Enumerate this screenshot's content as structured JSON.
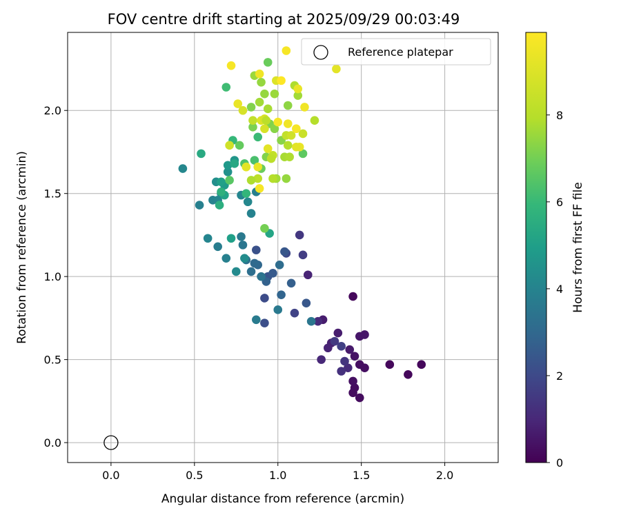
{
  "chart_data": {
    "type": "scatter",
    "title": "FOV centre drift starting at 2025/09/29 00:03:49",
    "xlabel": "Angular distance from reference (arcmin)",
    "ylabel": "Rotation from reference (arcmin)",
    "xlim": [
      -0.26,
      2.32
    ],
    "ylim": [
      -0.12,
      2.47
    ],
    "xticks": [
      "0.0",
      "0.5",
      "1.0",
      "1.5",
      "2.0"
    ],
    "yticks": [
      "0.0",
      "0.5",
      "1.0",
      "1.5",
      "2.0"
    ],
    "grid": true,
    "colorbar": {
      "label": "Hours from first FF file",
      "colormap": "viridis",
      "range": [
        0,
        9.9
      ],
      "ticks": [
        "0",
        "2",
        "4",
        "6",
        "8"
      ]
    },
    "legend": {
      "position": "top-right",
      "entries": [
        "Reference platepar"
      ]
    },
    "reference_point": {
      "x": 0.0,
      "y": 0.0
    },
    "points": [
      [
        1.45,
        0.88,
        0.2
      ],
      [
        1.67,
        0.47,
        0.2
      ],
      [
        1.78,
        0.41,
        0.2
      ],
      [
        1.86,
        0.47,
        0.2
      ],
      [
        1.49,
        0.27,
        0.3
      ],
      [
        1.45,
        0.3,
        0.3
      ],
      [
        1.46,
        0.33,
        0.3
      ],
      [
        1.45,
        0.37,
        0.4
      ],
      [
        1.49,
        0.47,
        0.4
      ],
      [
        1.52,
        0.45,
        0.4
      ],
      [
        1.46,
        0.52,
        0.5
      ],
      [
        1.49,
        0.64,
        0.6
      ],
      [
        1.52,
        0.65,
        0.6
      ],
      [
        1.43,
        0.56,
        0.7
      ],
      [
        1.36,
        0.66,
        0.8
      ],
      [
        1.32,
        0.6,
        0.9
      ],
      [
        1.3,
        0.57,
        1.0
      ],
      [
        1.26,
        0.5,
        1.1
      ],
      [
        1.42,
        0.45,
        1.2
      ],
      [
        1.38,
        0.43,
        1.4
      ],
      [
        1.4,
        0.49,
        1.5
      ],
      [
        1.34,
        0.61,
        1.7
      ],
      [
        1.38,
        0.58,
        1.9
      ],
      [
        1.27,
        0.74,
        0.8
      ],
      [
        1.24,
        0.73,
        1.2
      ],
      [
        1.18,
        1.01,
        1.0
      ],
      [
        1.13,
        1.25,
        1.6
      ],
      [
        1.15,
        1.13,
        1.8
      ],
      [
        1.05,
        1.14,
        2.2
      ],
      [
        1.1,
        0.78,
        2.0
      ],
      [
        0.92,
        0.87,
        2.3
      ],
      [
        0.92,
        0.72,
        2.4
      ],
      [
        0.87,
        1.16,
        2.5
      ],
      [
        0.94,
        1.0,
        2.6
      ],
      [
        0.97,
        1.02,
        2.8
      ],
      [
        1.04,
        1.15,
        2.7
      ],
      [
        1.17,
        0.84,
        2.7
      ],
      [
        1.08,
        0.96,
        3.0
      ],
      [
        0.93,
        0.97,
        3.1
      ],
      [
        1.02,
        0.89,
        3.2
      ],
      [
        0.88,
        1.07,
        3.3
      ],
      [
        0.86,
        1.08,
        3.4
      ],
      [
        0.84,
        1.03,
        3.6
      ],
      [
        1.01,
        1.07,
        3.5
      ],
      [
        0.81,
        1.1,
        3.7
      ],
      [
        0.9,
        1.0,
        3.8
      ],
      [
        1.2,
        0.73,
        3.9
      ],
      [
        1.0,
        0.8,
        4.0
      ],
      [
        0.87,
        0.74,
        4.1
      ],
      [
        0.79,
        1.19,
        3.9
      ],
      [
        0.78,
        1.24,
        4.0
      ],
      [
        0.64,
        1.18,
        4.2
      ],
      [
        0.69,
        1.11,
        4.3
      ],
      [
        0.84,
        1.38,
        4.4
      ],
      [
        0.87,
        1.51,
        4.3
      ],
      [
        0.78,
        1.49,
        4.5
      ],
      [
        0.82,
        1.45,
        4.6
      ],
      [
        0.58,
        1.23,
        4.5
      ],
      [
        0.75,
        1.03,
        4.7
      ],
      [
        0.8,
        1.11,
        4.8
      ],
      [
        0.53,
        1.43,
        4.3
      ],
      [
        0.43,
        1.65,
        4.6
      ],
      [
        0.61,
        1.46,
        4.4
      ],
      [
        0.64,
        1.46,
        4.5
      ],
      [
        0.66,
        1.5,
        4.7
      ],
      [
        0.63,
        1.57,
        4.9
      ],
      [
        0.7,
        1.63,
        5.0
      ],
      [
        0.74,
        1.7,
        5.2
      ],
      [
        0.7,
        1.67,
        5.3
      ],
      [
        0.68,
        1.55,
        5.4
      ],
      [
        0.66,
        1.57,
        5.6
      ],
      [
        0.68,
        1.49,
        5.7
      ],
      [
        0.72,
        1.23,
        5.6
      ],
      [
        0.95,
        1.26,
        5.8
      ],
      [
        0.74,
        1.68,
        5.9
      ],
      [
        0.54,
        1.74,
        6.0
      ],
      [
        0.65,
        1.43,
        6.2
      ],
      [
        0.66,
        1.51,
        6.3
      ],
      [
        0.81,
        1.5,
        6.5
      ],
      [
        0.73,
        1.82,
        6.6
      ],
      [
        0.88,
        1.84,
        6.7
      ],
      [
        0.69,
        2.14,
        6.8
      ],
      [
        0.86,
        1.7,
        7.0
      ],
      [
        0.8,
        1.68,
        7.1
      ],
      [
        0.71,
        1.58,
        7.3
      ],
      [
        0.77,
        1.79,
        7.5
      ],
      [
        0.9,
        1.65,
        7.6
      ],
      [
        0.92,
        1.29,
        7.8
      ],
      [
        0.85,
        1.9,
        7.9
      ],
      [
        0.95,
        1.92,
        8.0
      ],
      [
        0.98,
        1.89,
        8.1
      ],
      [
        0.94,
        2.29,
        7.6
      ],
      [
        0.92,
        2.1,
        8.3
      ],
      [
        0.9,
        2.17,
        8.3
      ],
      [
        0.86,
        2.21,
        8.4
      ],
      [
        0.89,
        2.05,
        8.5
      ],
      [
        0.84,
        2.02,
        8.0
      ],
      [
        0.94,
        2.01,
        8.6
      ],
      [
        0.98,
        2.1,
        8.4
      ],
      [
        1.06,
        2.03,
        8.2
      ],
      [
        1.12,
        2.09,
        8.5
      ],
      [
        1.1,
        2.15,
        8.7
      ],
      [
        1.02,
        1.82,
        8.1
      ],
      [
        1.05,
        1.59,
        8.3
      ],
      [
        0.99,
        1.59,
        8.5
      ],
      [
        0.93,
        1.72,
        8.0
      ],
      [
        0.97,
        1.73,
        9.0
      ],
      [
        1.04,
        1.72,
        8.6
      ],
      [
        1.07,
        1.72,
        8.7
      ],
      [
        1.06,
        1.79,
        8.8
      ],
      [
        1.05,
        1.85,
        9.0
      ],
      [
        1.08,
        1.85,
        9.2
      ],
      [
        1.15,
        1.74,
        7.4
      ],
      [
        1.15,
        1.86,
        9.1
      ],
      [
        1.22,
        1.94,
        8.8
      ],
      [
        0.96,
        1.71,
        8.9
      ],
      [
        0.97,
        1.59,
        8.8
      ],
      [
        0.88,
        1.59,
        8.9
      ],
      [
        0.84,
        1.58,
        8.7
      ],
      [
        0.85,
        1.94,
        9.0
      ],
      [
        0.9,
        1.94,
        9.4
      ],
      [
        0.92,
        1.89,
        9.3
      ],
      [
        0.94,
        1.77,
        9.5
      ],
      [
        0.88,
        1.66,
        9.6
      ],
      [
        0.81,
        1.66,
        9.7
      ],
      [
        0.71,
        1.79,
        9.2
      ],
      [
        0.76,
        2.04,
        9.6
      ],
      [
        0.79,
        2.0,
        9.3
      ],
      [
        0.89,
        2.22,
        9.7
      ],
      [
        0.72,
        2.27,
        9.8
      ],
      [
        1.0,
        1.93,
        9.8
      ],
      [
        1.06,
        1.92,
        9.7
      ],
      [
        1.11,
        1.89,
        9.8
      ],
      [
        1.13,
        1.78,
        9.6
      ],
      [
        1.11,
        1.78,
        9.5
      ],
      [
        1.16,
        2.02,
        9.7
      ],
      [
        1.12,
        2.13,
        9.6
      ],
      [
        1.05,
        2.36,
        9.8
      ],
      [
        1.35,
        2.25,
        9.5
      ],
      [
        0.99,
        2.18,
        9.4
      ],
      [
        0.92,
        1.95,
        9.3
      ],
      [
        0.89,
        1.53,
        9.8
      ],
      [
        1.02,
        2.18,
        9.9
      ],
      [
        0.81,
        1.66,
        9.5
      ],
      [
        0.93,
        1.94,
        8.9
      ]
    ]
  }
}
